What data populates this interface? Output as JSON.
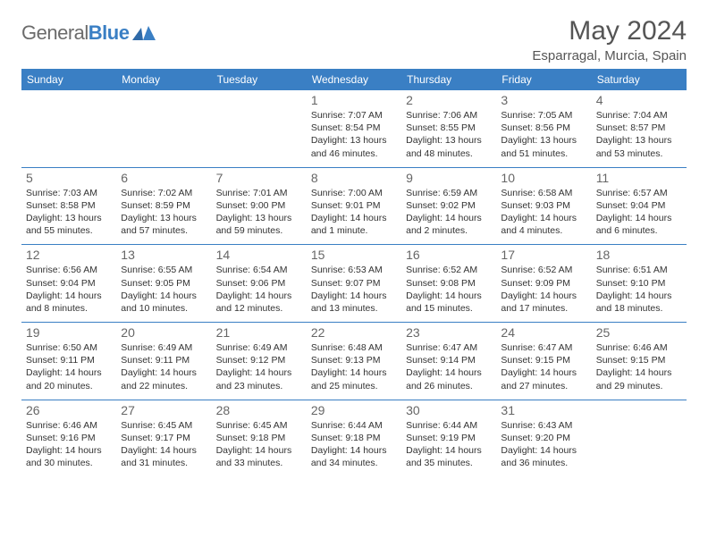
{
  "logo": {
    "word1": "General",
    "word2": "Blue"
  },
  "title": "May 2024",
  "subtitle": "Esparragal, Murcia, Spain",
  "colors": {
    "header_bg": "#3a7fc4",
    "header_fg": "#ffffff",
    "cell_border": "#3a7fc4",
    "text": "#333333",
    "daynum": "#666666",
    "title": "#555555",
    "logo_gray": "#6b6b6b",
    "logo_blue": "#3a7fc4",
    "page_bg": "#ffffff"
  },
  "weekdays": [
    "Sunday",
    "Monday",
    "Tuesday",
    "Wednesday",
    "Thursday",
    "Friday",
    "Saturday"
  ],
  "weeks": [
    [
      null,
      null,
      null,
      {
        "n": "1",
        "sr": "7:07 AM",
        "ss": "8:54 PM",
        "dl1": "13 hours",
        "dl2": "and 46 minutes."
      },
      {
        "n": "2",
        "sr": "7:06 AM",
        "ss": "8:55 PM",
        "dl1": "13 hours",
        "dl2": "and 48 minutes."
      },
      {
        "n": "3",
        "sr": "7:05 AM",
        "ss": "8:56 PM",
        "dl1": "13 hours",
        "dl2": "and 51 minutes."
      },
      {
        "n": "4",
        "sr": "7:04 AM",
        "ss": "8:57 PM",
        "dl1": "13 hours",
        "dl2": "and 53 minutes."
      }
    ],
    [
      {
        "n": "5",
        "sr": "7:03 AM",
        "ss": "8:58 PM",
        "dl1": "13 hours",
        "dl2": "and 55 minutes."
      },
      {
        "n": "6",
        "sr": "7:02 AM",
        "ss": "8:59 PM",
        "dl1": "13 hours",
        "dl2": "and 57 minutes."
      },
      {
        "n": "7",
        "sr": "7:01 AM",
        "ss": "9:00 PM",
        "dl1": "13 hours",
        "dl2": "and 59 minutes."
      },
      {
        "n": "8",
        "sr": "7:00 AM",
        "ss": "9:01 PM",
        "dl1": "14 hours",
        "dl2": "and 1 minute."
      },
      {
        "n": "9",
        "sr": "6:59 AM",
        "ss": "9:02 PM",
        "dl1": "14 hours",
        "dl2": "and 2 minutes."
      },
      {
        "n": "10",
        "sr": "6:58 AM",
        "ss": "9:03 PM",
        "dl1": "14 hours",
        "dl2": "and 4 minutes."
      },
      {
        "n": "11",
        "sr": "6:57 AM",
        "ss": "9:04 PM",
        "dl1": "14 hours",
        "dl2": "and 6 minutes."
      }
    ],
    [
      {
        "n": "12",
        "sr": "6:56 AM",
        "ss": "9:04 PM",
        "dl1": "14 hours",
        "dl2": "and 8 minutes."
      },
      {
        "n": "13",
        "sr": "6:55 AM",
        "ss": "9:05 PM",
        "dl1": "14 hours",
        "dl2": "and 10 minutes."
      },
      {
        "n": "14",
        "sr": "6:54 AM",
        "ss": "9:06 PM",
        "dl1": "14 hours",
        "dl2": "and 12 minutes."
      },
      {
        "n": "15",
        "sr": "6:53 AM",
        "ss": "9:07 PM",
        "dl1": "14 hours",
        "dl2": "and 13 minutes."
      },
      {
        "n": "16",
        "sr": "6:52 AM",
        "ss": "9:08 PM",
        "dl1": "14 hours",
        "dl2": "and 15 minutes."
      },
      {
        "n": "17",
        "sr": "6:52 AM",
        "ss": "9:09 PM",
        "dl1": "14 hours",
        "dl2": "and 17 minutes."
      },
      {
        "n": "18",
        "sr": "6:51 AM",
        "ss": "9:10 PM",
        "dl1": "14 hours",
        "dl2": "and 18 minutes."
      }
    ],
    [
      {
        "n": "19",
        "sr": "6:50 AM",
        "ss": "9:11 PM",
        "dl1": "14 hours",
        "dl2": "and 20 minutes."
      },
      {
        "n": "20",
        "sr": "6:49 AM",
        "ss": "9:11 PM",
        "dl1": "14 hours",
        "dl2": "and 22 minutes."
      },
      {
        "n": "21",
        "sr": "6:49 AM",
        "ss": "9:12 PM",
        "dl1": "14 hours",
        "dl2": "and 23 minutes."
      },
      {
        "n": "22",
        "sr": "6:48 AM",
        "ss": "9:13 PM",
        "dl1": "14 hours",
        "dl2": "and 25 minutes."
      },
      {
        "n": "23",
        "sr": "6:47 AM",
        "ss": "9:14 PM",
        "dl1": "14 hours",
        "dl2": "and 26 minutes."
      },
      {
        "n": "24",
        "sr": "6:47 AM",
        "ss": "9:15 PM",
        "dl1": "14 hours",
        "dl2": "and 27 minutes."
      },
      {
        "n": "25",
        "sr": "6:46 AM",
        "ss": "9:15 PM",
        "dl1": "14 hours",
        "dl2": "and 29 minutes."
      }
    ],
    [
      {
        "n": "26",
        "sr": "6:46 AM",
        "ss": "9:16 PM",
        "dl1": "14 hours",
        "dl2": "and 30 minutes."
      },
      {
        "n": "27",
        "sr": "6:45 AM",
        "ss": "9:17 PM",
        "dl1": "14 hours",
        "dl2": "and 31 minutes."
      },
      {
        "n": "28",
        "sr": "6:45 AM",
        "ss": "9:18 PM",
        "dl1": "14 hours",
        "dl2": "and 33 minutes."
      },
      {
        "n": "29",
        "sr": "6:44 AM",
        "ss": "9:18 PM",
        "dl1": "14 hours",
        "dl2": "and 34 minutes."
      },
      {
        "n": "30",
        "sr": "6:44 AM",
        "ss": "9:19 PM",
        "dl1": "14 hours",
        "dl2": "and 35 minutes."
      },
      {
        "n": "31",
        "sr": "6:43 AM",
        "ss": "9:20 PM",
        "dl1": "14 hours",
        "dl2": "and 36 minutes."
      },
      null
    ]
  ],
  "labels": {
    "sunrise": "Sunrise:",
    "sunset": "Sunset:",
    "daylight": "Daylight:"
  }
}
